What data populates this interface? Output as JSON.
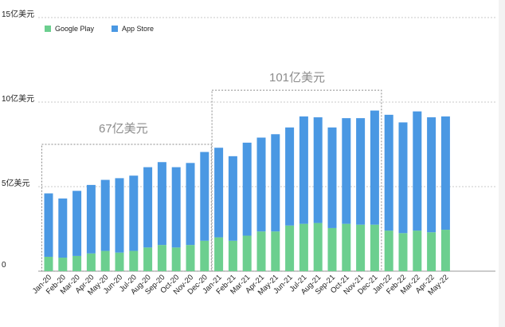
{
  "chart_data": {
    "type": "bar",
    "stacked": true,
    "title": "",
    "xlabel": "",
    "ylabel": "",
    "categories": [
      "Jan-20",
      "Feb-20",
      "Mar-20",
      "Apr-20",
      "May-20",
      "Jun-20",
      "Jul-20",
      "Aug-20",
      "Sep-20",
      "Oct-20",
      "Nov-20",
      "Dec-20",
      "Jan-21",
      "Feb-21",
      "Mar-21",
      "Apr-21",
      "May-21",
      "Jun-21",
      "Jul-21",
      "Aug-21",
      "Sep-21",
      "Oct-21",
      "Nov-21",
      "Dec-21",
      "Jan-22",
      "Feb-22",
      "Mar-22",
      "Apr-22",
      "May-22"
    ],
    "series": [
      {
        "name": "Google Play",
        "color": "#6ccf8f",
        "values": [
          0.85,
          0.8,
          0.9,
          1.05,
          1.2,
          1.1,
          1.2,
          1.4,
          1.55,
          1.4,
          1.55,
          1.8,
          2.0,
          1.8,
          2.1,
          2.35,
          2.35,
          2.7,
          2.8,
          2.85,
          2.55,
          2.8,
          2.75,
          2.75,
          2.4,
          2.25,
          2.4,
          2.3,
          2.45
        ]
      },
      {
        "name": "App Store",
        "color": "#4a98e3",
        "values": [
          3.75,
          3.5,
          3.85,
          4.05,
          4.2,
          4.4,
          4.45,
          4.75,
          4.9,
          4.75,
          4.85,
          5.25,
          5.3,
          5.0,
          5.5,
          5.55,
          5.75,
          5.8,
          6.35,
          6.25,
          5.95,
          6.25,
          6.3,
          6.75,
          6.85,
          6.55,
          7.05,
          6.8,
          6.7
        ]
      }
    ],
    "ylim": [
      0,
      15
    ],
    "yticks": [
      {
        "value": 0,
        "label": "0"
      },
      {
        "value": 5,
        "label": "5亿美元"
      },
      {
        "value": 10,
        "label": "10亿美元"
      },
      {
        "value": 15,
        "label": "15亿美元"
      }
    ],
    "legend_position": "top-left",
    "grid": true,
    "annotations": [
      {
        "text": "67亿美元",
        "range": [
          0,
          11
        ],
        "box_top": 7.5
      },
      {
        "text": "101亿美元",
        "range": [
          12,
          23
        ],
        "box_top": 10.7
      }
    ]
  }
}
